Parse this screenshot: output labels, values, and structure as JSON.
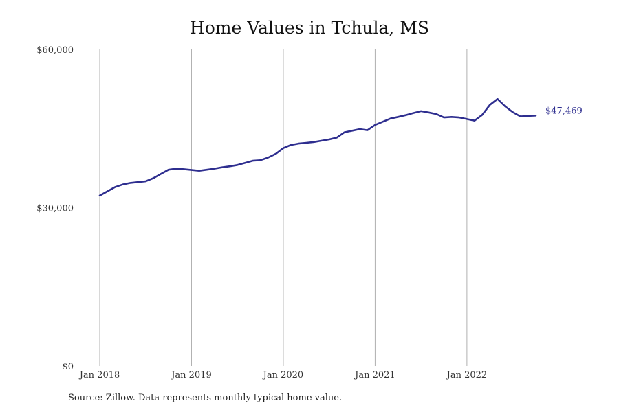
{
  "chart_data": {
    "type": "line",
    "title": "Home Values in Tchula, MS",
    "source_note": "Source: Zillow. Data represents monthly typical home value.",
    "series_color": "#2e2e8f",
    "gridline_color": "#b0b0b0",
    "y_ticks": [
      {
        "value": 0,
        "label": "$0"
      },
      {
        "value": 30000,
        "label": "$30,000"
      },
      {
        "value": 60000,
        "label": "$60,000"
      }
    ],
    "x_ticks": [
      {
        "value": "2018-01",
        "label": "Jan 2018"
      },
      {
        "value": "2019-01",
        "label": "Jan 2019"
      },
      {
        "value": "2020-01",
        "label": "Jan 2020"
      },
      {
        "value": "2021-01",
        "label": "Jan 2021"
      },
      {
        "value": "2022-01",
        "label": "Jan 2022"
      }
    ],
    "ylim": [
      0,
      60000
    ],
    "xlim": [
      "2018-01",
      "2022-10"
    ],
    "grid": "vertical",
    "end_label": "$47,469",
    "series": [
      {
        "x": [
          "2018-01",
          "2018-02",
          "2018-03",
          "2018-04",
          "2018-05",
          "2018-06",
          "2018-07",
          "2018-08",
          "2018-09",
          "2018-10",
          "2018-11",
          "2018-12",
          "2019-01",
          "2019-02",
          "2019-03",
          "2019-04",
          "2019-05",
          "2019-06",
          "2019-07",
          "2019-08",
          "2019-09",
          "2019-10",
          "2019-11",
          "2019-12",
          "2020-01",
          "2020-02",
          "2020-03",
          "2020-04",
          "2020-05",
          "2020-06",
          "2020-07",
          "2020-08",
          "2020-09",
          "2020-10",
          "2020-11",
          "2020-12",
          "2021-01",
          "2021-02",
          "2021-03",
          "2021-04",
          "2021-05",
          "2021-06",
          "2021-07",
          "2021-08",
          "2021-09",
          "2021-10",
          "2021-11",
          "2021-12",
          "2022-01",
          "2022-02",
          "2022-03",
          "2022-04",
          "2022-05",
          "2022-06",
          "2022-07",
          "2022-08",
          "2022-09",
          "2022-10"
        ],
        "values": [
          32300,
          33100,
          33900,
          34400,
          34700,
          34850,
          35000,
          35600,
          36400,
          37200,
          37400,
          37300,
          37150,
          37000,
          37200,
          37400,
          37650,
          37850,
          38100,
          38500,
          38900,
          39000,
          39500,
          40200,
          41300,
          41900,
          42150,
          42300,
          42450,
          42700,
          42950,
          43300,
          44300,
          44600,
          44900,
          44700,
          45700,
          46300,
          46900,
          47200,
          47550,
          47950,
          48300,
          48050,
          47750,
          47100,
          47200,
          47100,
          46800,
          46500,
          47600,
          49500,
          50600,
          49200,
          48100,
          47300,
          47400,
          47469
        ]
      }
    ]
  }
}
